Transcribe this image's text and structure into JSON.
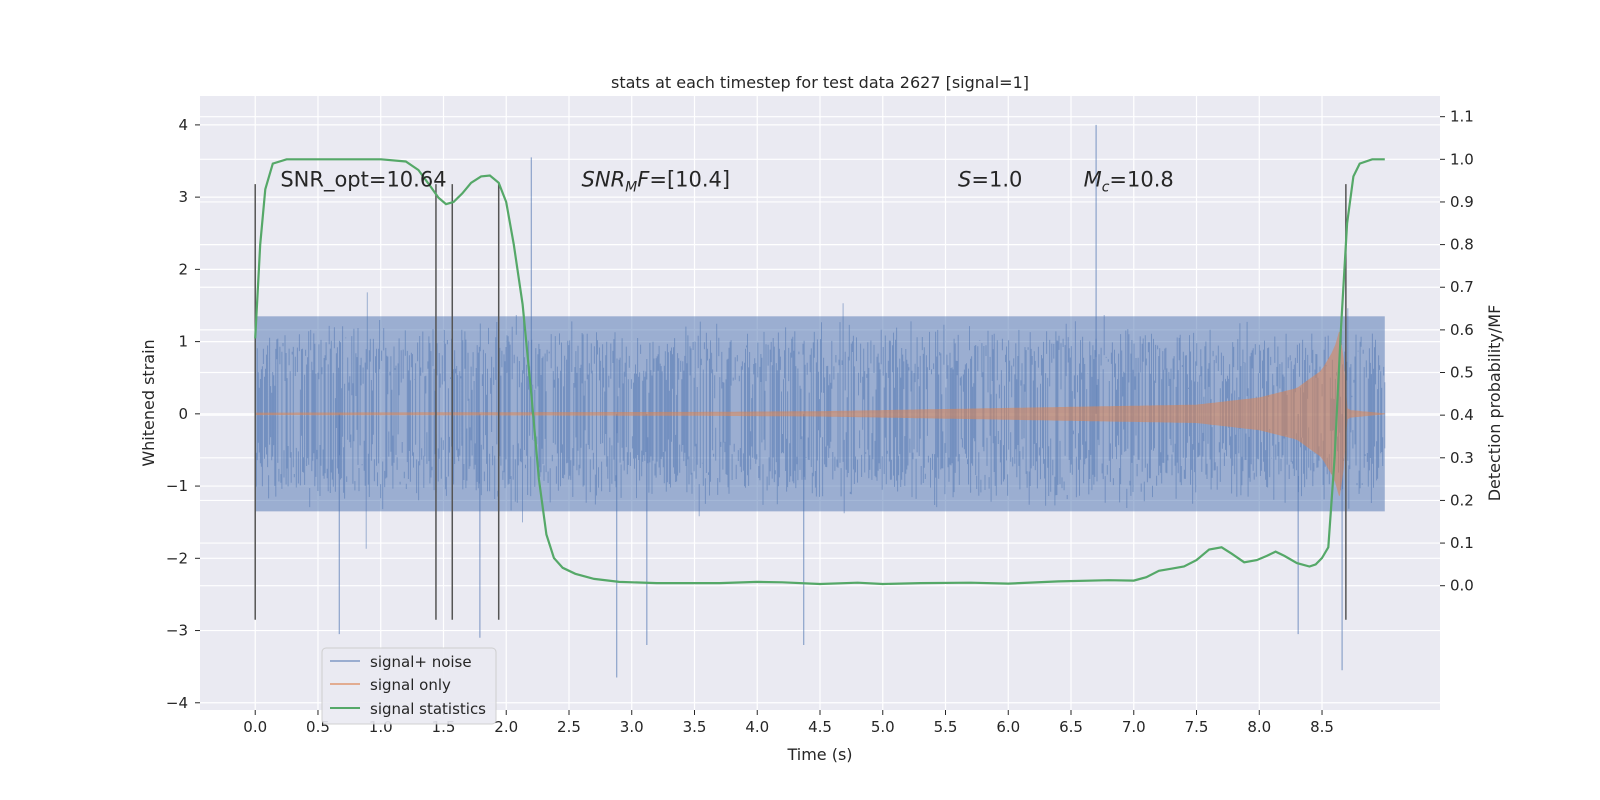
{
  "chart_data": {
    "type": "line",
    "title": "stats at each timestep for test data 2627 [signal=1]",
    "xlabel": "Time (s)",
    "ylabel": "Whitened strain",
    "y2label": "Detection probability/MF",
    "xlim": [
      -0.44,
      9.44
    ],
    "ylim": [
      -4.1,
      4.4
    ],
    "y2lim": [
      -0.2915,
      1.1485
    ],
    "xticks": [
      "0.0",
      "0.5",
      "1.0",
      "1.5",
      "2.0",
      "2.5",
      "3.0",
      "3.5",
      "4.0",
      "4.5",
      "5.0",
      "5.5",
      "6.0",
      "6.5",
      "7.0",
      "7.5",
      "8.0",
      "8.5"
    ],
    "yticks": [
      "4",
      "3",
      "2",
      "1",
      "0",
      "−1",
      "−2",
      "−3",
      "−4"
    ],
    "y2ticks": [
      "1.1",
      "1.0",
      "0.9",
      "0.8",
      "0.7",
      "0.6",
      "0.5",
      "0.4",
      "0.3",
      "0.2",
      "0.1",
      "0.0"
    ],
    "grid": true,
    "legend_position": "bottom-left",
    "colors": {
      "background": "#eaeaf2",
      "grid": "#ffffff",
      "noise": "#4c72b0",
      "signal": "#dd8452",
      "stats": "#55a868",
      "vline": "#555555"
    },
    "annotations": [
      {
        "text": "SNR_opt=10.64",
        "x": 0.2,
        "y": 3.15
      },
      {
        "text": "SNR_MF=[10.4]",
        "x": 2.6,
        "y": 3.15
      },
      {
        "text": "S=1.0",
        "x": 5.6,
        "y": 3.15
      },
      {
        "text": "M_c=10.8",
        "x": 6.6,
        "y": 3.15
      }
    ],
    "vertical_lines": [
      0.0,
      1.44,
      1.57,
      1.94,
      8.69
    ],
    "vertical_line_range": [
      -2.85,
      3.18
    ],
    "series": [
      {
        "name": "signal+ noise",
        "time_range": [
          0.0,
          9.0
        ],
        "spread": 1.35,
        "peak_values": [
          {
            "x": 0.67,
            "y": -3.05
          },
          {
            "x": 1.79,
            "y": -3.1
          },
          {
            "x": 2.2,
            "y": 3.55
          },
          {
            "x": 2.88,
            "y": -3.65
          },
          {
            "x": 3.12,
            "y": -3.2
          },
          {
            "x": 4.37,
            "y": -3.2
          },
          {
            "x": 6.7,
            "y": 4.0
          },
          {
            "x": 8.31,
            "y": -3.05
          },
          {
            "x": 8.66,
            "y": -3.55
          }
        ]
      },
      {
        "name": "signal only",
        "time_range": [
          0.0,
          9.0
        ],
        "envelope": [
          {
            "x": 0.0,
            "y": 0.01
          },
          {
            "x": 3.5,
            "y": 0.02
          },
          {
            "x": 4.5,
            "y": 0.03
          },
          {
            "x": 5.5,
            "y": 0.06
          },
          {
            "x": 6.5,
            "y": 0.09
          },
          {
            "x": 7.5,
            "y": 0.12
          },
          {
            "x": 8.0,
            "y": 0.22
          },
          {
            "x": 8.3,
            "y": 0.35
          },
          {
            "x": 8.5,
            "y": 0.6
          },
          {
            "x": 8.6,
            "y": 0.9
          },
          {
            "x": 8.65,
            "y": 1.2
          },
          {
            "x": 8.7,
            "y": 0.05
          },
          {
            "x": 9.0,
            "y": 0.0
          }
        ]
      },
      {
        "name": "signal statistics",
        "axis": "right",
        "points": [
          [
            0.0,
            0.58
          ],
          [
            0.04,
            0.8
          ],
          [
            0.08,
            0.93
          ],
          [
            0.14,
            0.99
          ],
          [
            0.25,
            1.0
          ],
          [
            0.6,
            1.0
          ],
          [
            1.0,
            1.0
          ],
          [
            1.2,
            0.995
          ],
          [
            1.3,
            0.975
          ],
          [
            1.4,
            0.935
          ],
          [
            1.46,
            0.91
          ],
          [
            1.52,
            0.895
          ],
          [
            1.58,
            0.9
          ],
          [
            1.65,
            0.92
          ],
          [
            1.72,
            0.945
          ],
          [
            1.8,
            0.96
          ],
          [
            1.87,
            0.962
          ],
          [
            1.94,
            0.945
          ],
          [
            2.0,
            0.9
          ],
          [
            2.06,
            0.8
          ],
          [
            2.13,
            0.66
          ],
          [
            2.2,
            0.45
          ],
          [
            2.26,
            0.25
          ],
          [
            2.32,
            0.12
          ],
          [
            2.38,
            0.065
          ],
          [
            2.45,
            0.042
          ],
          [
            2.55,
            0.028
          ],
          [
            2.7,
            0.016
          ],
          [
            2.9,
            0.009
          ],
          [
            3.2,
            0.006
          ],
          [
            3.7,
            0.006
          ],
          [
            4.0,
            0.009
          ],
          [
            4.2,
            0.008
          ],
          [
            4.5,
            0.004
          ],
          [
            4.8,
            0.007
          ],
          [
            5.0,
            0.004
          ],
          [
            5.3,
            0.006
          ],
          [
            5.7,
            0.007
          ],
          [
            6.0,
            0.005
          ],
          [
            6.4,
            0.01
          ],
          [
            6.8,
            0.013
          ],
          [
            7.0,
            0.012
          ],
          [
            7.1,
            0.02
          ],
          [
            7.2,
            0.035
          ],
          [
            7.3,
            0.04
          ],
          [
            7.4,
            0.045
          ],
          [
            7.5,
            0.06
          ],
          [
            7.6,
            0.085
          ],
          [
            7.7,
            0.09
          ],
          [
            7.78,
            0.075
          ],
          [
            7.88,
            0.055
          ],
          [
            7.98,
            0.06
          ],
          [
            8.06,
            0.07
          ],
          [
            8.13,
            0.08
          ],
          [
            8.2,
            0.07
          ],
          [
            8.3,
            0.053
          ],
          [
            8.4,
            0.045
          ],
          [
            8.45,
            0.05
          ],
          [
            8.5,
            0.065
          ],
          [
            8.55,
            0.09
          ],
          [
            8.6,
            0.3
          ],
          [
            8.65,
            0.6
          ],
          [
            8.7,
            0.85
          ],
          [
            8.75,
            0.96
          ],
          [
            8.8,
            0.99
          ],
          [
            8.9,
            1.0
          ],
          [
            9.0,
            1.0
          ]
        ]
      }
    ]
  }
}
